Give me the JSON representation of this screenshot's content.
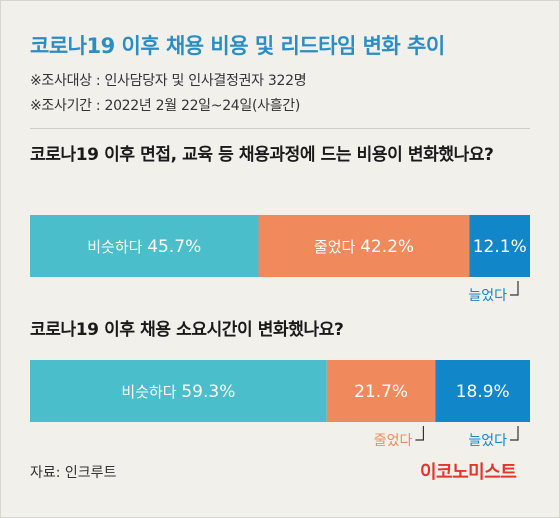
{
  "title": "코로나19 이후 채용 비용 및 리드타임 변화 추이",
  "meta": {
    "target": "※조사대상 : 인사담당자 및 인사결정권자 322명",
    "period": "※조사기간 : 2022년 2월 22일~24일(사흘간)"
  },
  "source": "자료: 인크루트",
  "brand": "이코노미스트",
  "colors": {
    "teal": "#4bbecb",
    "orange": "#f08a5d",
    "blue": "#1186c8",
    "title": "#2a8ec4"
  },
  "chart_data": [
    {
      "type": "bar",
      "orientation": "horizontal-stacked-100",
      "title": "코로나19 이후 면접, 교육 등 채용과정에 드는 비용이 변화했나요?",
      "categories": [
        "비슷하다",
        "줄었다",
        "늘었다"
      ],
      "values": [
        45.7,
        42.2,
        12.1
      ],
      "value_labels": [
        "45.7%",
        "42.2%",
        "12.1%"
      ],
      "colors": [
        "#4bbecb",
        "#f08a5d",
        "#1186c8"
      ],
      "inside_labels": [
        "비슷하다",
        "줄었다",
        ""
      ],
      "callouts": [
        "",
        "",
        "늘었다"
      ]
    },
    {
      "type": "bar",
      "orientation": "horizontal-stacked-100",
      "title": "코로나19 이후 채용 소요시간이 변화했나요?",
      "categories": [
        "비슷하다",
        "줄었다",
        "늘었다"
      ],
      "values": [
        59.3,
        21.7,
        18.9
      ],
      "value_labels": [
        "59.3%",
        "21.7%",
        "18.9%"
      ],
      "colors": [
        "#4bbecb",
        "#f08a5d",
        "#1186c8"
      ],
      "inside_labels": [
        "비슷하다",
        "",
        ""
      ],
      "callouts": [
        "",
        "줄었다",
        "늘었다"
      ]
    }
  ]
}
